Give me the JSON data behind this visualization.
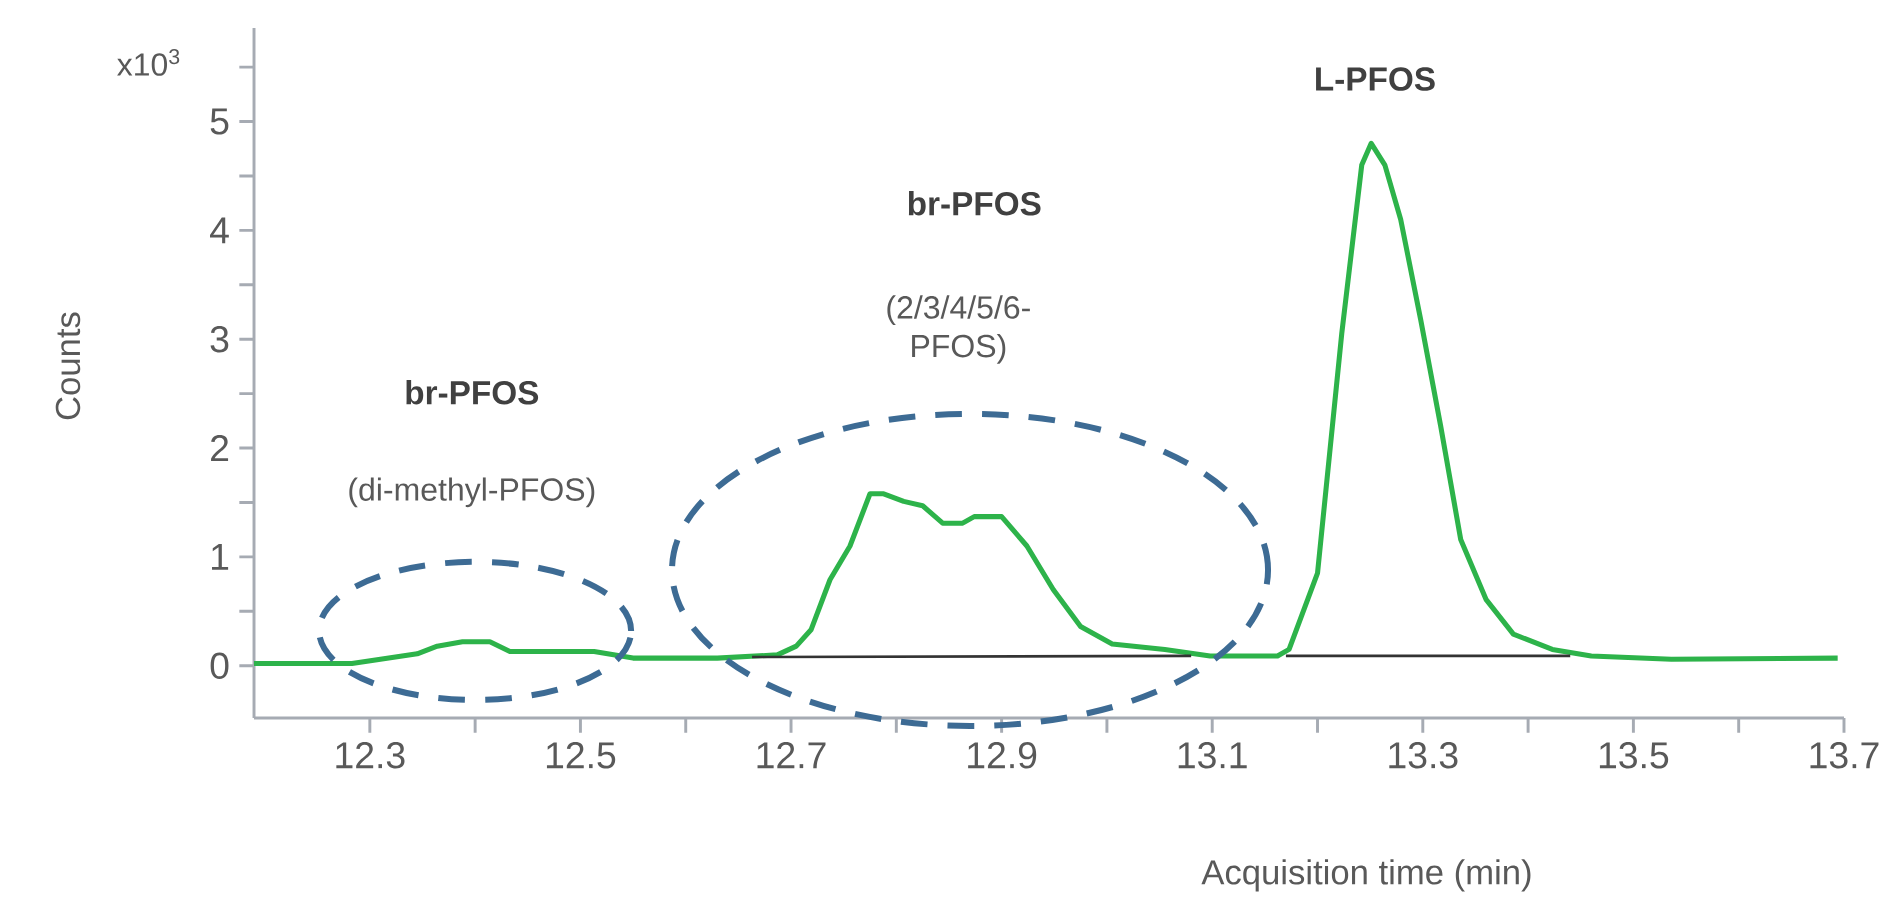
{
  "chart_data": {
    "type": "line",
    "xlabel": "Acquisition time (min)",
    "ylabel": "Counts",
    "xlim": [
      12.19,
      13.7
    ],
    "ylim": [
      -0.48,
      5.86
    ],
    "xticks": [
      12.3,
      {
        "value": 12.4,
        "label": null
      },
      12.5,
      {
        "value": 12.6,
        "label": null
      },
      12.7,
      {
        "value": 12.8,
        "label": null
      },
      12.9,
      {
        "value": 13.0,
        "label": null
      },
      13.1,
      {
        "value": 13.2,
        "label": null
      },
      13.3,
      {
        "value": 13.4,
        "label": null
      },
      13.5,
      {
        "value": 13.6,
        "label": null
      },
      13.7
    ],
    "yticks": [
      0,
      {
        "value": 0.5,
        "label": null
      },
      1,
      {
        "value": 1.5,
        "label": null
      },
      2,
      {
        "value": 2.5,
        "label": null
      },
      3,
      {
        "value": 3.5,
        "label": null
      },
      4,
      {
        "value": 4.5,
        "label": null
      },
      5,
      {
        "value": 5.5,
        "label": null
      }
    ],
    "annotations": [
      "x10$^{3}$",
      "br-PFOS",
      "(di-methyl-PFOS)",
      "br-PFOS",
      "(2/3/4/5/6-PFOS)",
      "L-PFOS"
    ],
    "series": [
      {
        "color": "#2db34a",
        "x": [
          12.19,
          12.283,
          12.345,
          12.364,
          12.388,
          12.414,
          12.433,
          12.513,
          12.55,
          12.63,
          12.687,
          12.705,
          12.719,
          12.737,
          12.756,
          12.775,
          12.788,
          12.807,
          12.825,
          12.844,
          12.863,
          12.874,
          12.9,
          12.924,
          12.949,
          12.975,
          13.005,
          13.055,
          13.098,
          13.162,
          13.173,
          13.2,
          13.223,
          13.242,
          13.251,
          13.264,
          13.279,
          13.298,
          13.317,
          13.336,
          13.36,
          13.386,
          13.423,
          13.46,
          13.536,
          13.694
        ],
        "values": [
          0.02,
          0.02,
          0.11,
          0.18,
          0.22,
          0.22,
          0.13,
          0.13,
          0.07,
          0.07,
          0.1,
          0.18,
          0.33,
          0.79,
          1.1,
          1.58,
          1.58,
          1.51,
          1.47,
          1.31,
          1.31,
          1.37,
          1.37,
          1.1,
          0.7,
          0.36,
          0.2,
          0.15,
          0.09,
          0.09,
          0.15,
          0.85,
          3.05,
          4.6,
          4.8,
          4.6,
          4.1,
          3.18,
          2.2,
          1.16,
          0.61,
          0.29,
          0.15,
          0.09,
          0.06,
          0.07
        ]
      },
      {
        "color": "#333333",
        "x": [
          12.663,
          13.08
        ],
        "values": [
          0.08,
          0.09
        ]
      },
      {
        "color": "#333333",
        "x": [
          13.17,
          13.44
        ],
        "values": [
          0.09,
          0.09
        ]
      }
    ]
  }
}
